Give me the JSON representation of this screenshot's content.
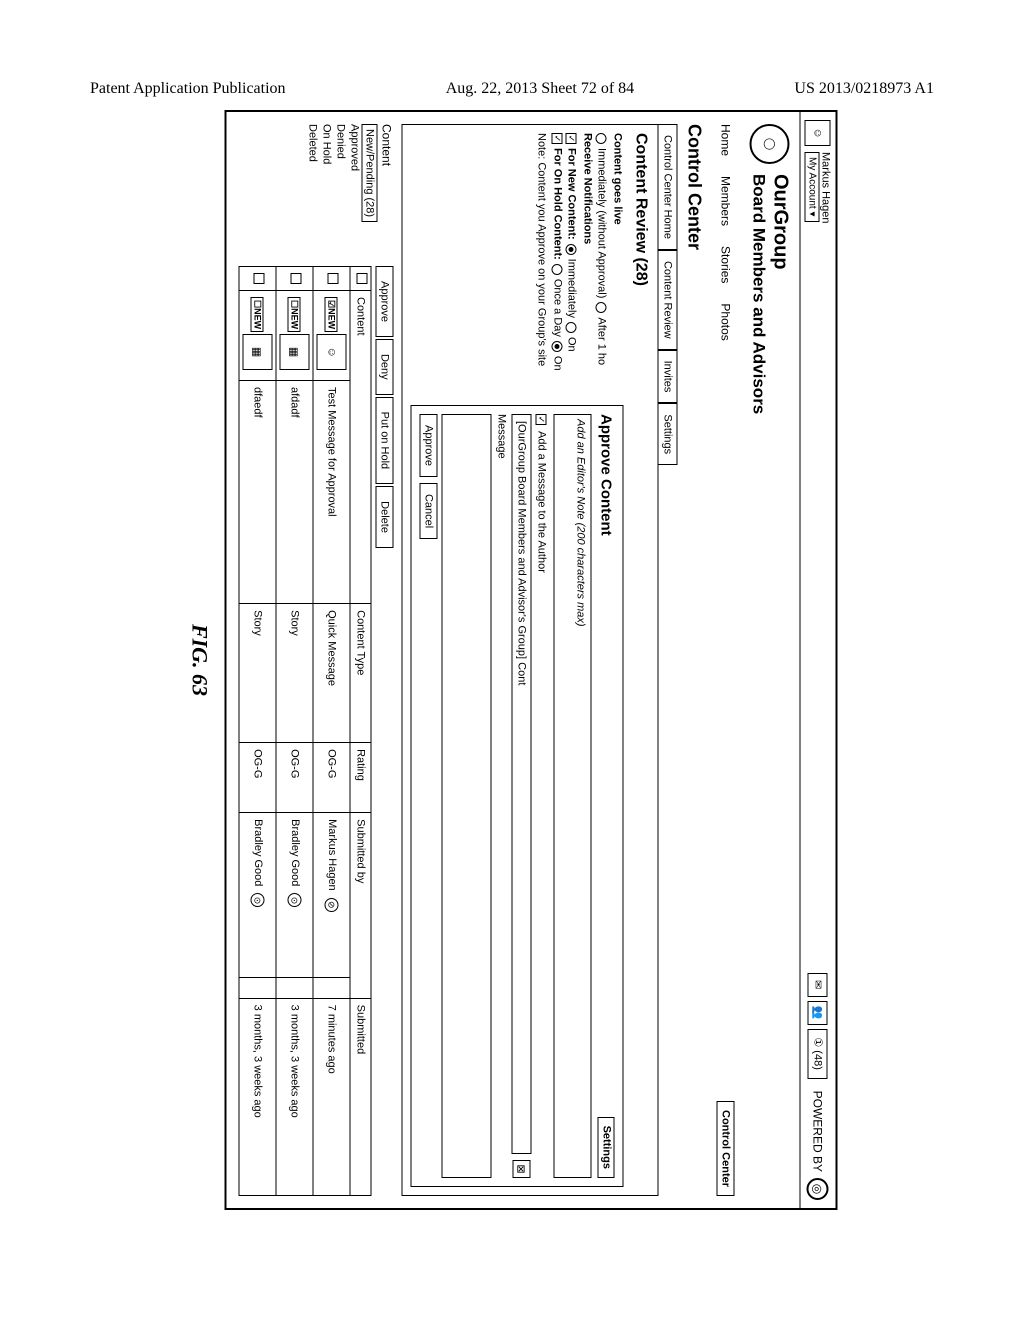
{
  "doc_header": {
    "left": "Patent Application Publication",
    "center": "Aug. 22, 2013  Sheet 72 of 84",
    "right": "US 2013/0218973 A1"
  },
  "topbar": {
    "username": "Markus Hagen",
    "account_label": "My Account ▾",
    "icon_mail": "✉",
    "icon_people": "👥",
    "icon_clock_label": "① (48)",
    "powered_label": "POWERED BY",
    "powered_glyph": "◎"
  },
  "group": {
    "name": "OurGroup",
    "subtitle": "Board Members and Advisors",
    "logo": "◯"
  },
  "nav": {
    "items": [
      "Home",
      "Members",
      "Stories",
      "Photos"
    ],
    "control_center": "Control Center"
  },
  "cc_title": "Control Center",
  "cc_tabs": [
    "Control Center Home",
    "Content Review",
    "Invites",
    "Settings"
  ],
  "content_review": {
    "title": "Content Review (28)",
    "goes_live_label": "Content goes live",
    "go_live_opts": [
      "Immediately (without Approval)",
      "After 1 ho"
    ],
    "notif_label": "Receive Notifications",
    "new_content_label": "For New Content:",
    "new_content_opts": [
      "Immediately",
      "On"
    ],
    "onhold_label": "For On Hold Content:",
    "onhold_opts": [
      "Once a Day",
      "On"
    ],
    "note": "Note: Content you Approve on your Group's site"
  },
  "approve_panel": {
    "title": "Approve Content",
    "settings_btn": "Settings",
    "editor_note_placeholder": "Add an Editor's Note (200 characters max)",
    "add_msg_label": "Add a Message to the Author",
    "to_field": "[OurGroup Board Members and Advisor's Group] Cont",
    "msg_label": "Message",
    "approve_btn": "Approve",
    "cancel_btn": "Cancel",
    "close_x": "⊠"
  },
  "sidebar": {
    "header": "Content",
    "items": [
      "New/Pending (28)",
      "Approved",
      "Denied",
      "On Hold",
      "Deleted"
    ]
  },
  "actions": [
    "Approve",
    "Deny",
    "Put on Hold",
    "Delete"
  ],
  "table": {
    "headers": [
      "",
      "",
      "Content",
      "",
      "Content Type",
      "Rating",
      "Submitted by",
      "",
      "Submitted"
    ],
    "rows": [
      {
        "new": "☑NEW",
        "thumb": "☺",
        "title": "Test Message for Approval",
        "type": "Quick Message",
        "rating": "OG-G",
        "by": "Markus Hagen",
        "byicon": "⊘",
        "submitted": "7 minutes ago"
      },
      {
        "new": "☐NEW",
        "thumb": "▦",
        "title": "afdadf",
        "type": "Story",
        "rating": "OG-G",
        "by": "Bradley Good",
        "byicon": "⊙",
        "submitted": "3 months, 3 weeks ago"
      },
      {
        "new": "☐NEW",
        "thumb": "▦",
        "title": "dfaedf",
        "type": "Story",
        "rating": "OG-G",
        "by": "Bradley Good",
        "byicon": "⊙",
        "submitted": "3 months, 3 weeks ago"
      }
    ]
  },
  "figure_label": "FIG. 63"
}
